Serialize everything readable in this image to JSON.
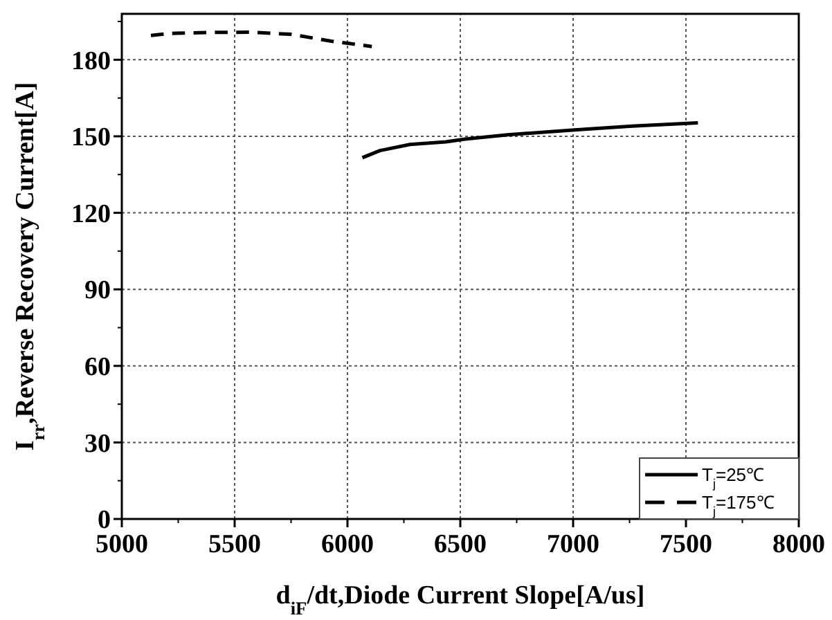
{
  "chart_data": {
    "type": "line",
    "xlabel": "d$_{iF}$/dt,Diode Current Slope[A/us]",
    "ylabel": "I$_{rr}$,Reverse Recovery Current[A]",
    "xlim": [
      5000,
      8000
    ],
    "xticks": [
      5000,
      5500,
      6000,
      6500,
      7000,
      7500,
      8000
    ],
    "ylim": [
      0,
      198
    ],
    "yticks": [
      0,
      30,
      60,
      90,
      120,
      150,
      180
    ],
    "grid": true,
    "legend": "bottom right",
    "marker": "none",
    "series": [
      {
        "name": "T$_{j}$=25℃",
        "color": "#000000",
        "line_style": "solid",
        "x": [
          6066,
          6144,
          6277,
          6436,
          6521,
          6711,
          7007,
          7261,
          7553
        ],
        "values": [
          141.6,
          144.4,
          146.8,
          147.8,
          148.9,
          150.6,
          152.5,
          154,
          155.3
        ]
      },
      {
        "name": "T$_{j}$=175℃",
        "color": "#000000",
        "line_style": "dashed",
        "x": [
          5129,
          5209,
          5378,
          5569,
          5748,
          5928,
          6108
        ],
        "values": [
          189.5,
          190.3,
          190.7,
          190.8,
          190,
          187.3,
          185.2
        ]
      }
    ]
  }
}
